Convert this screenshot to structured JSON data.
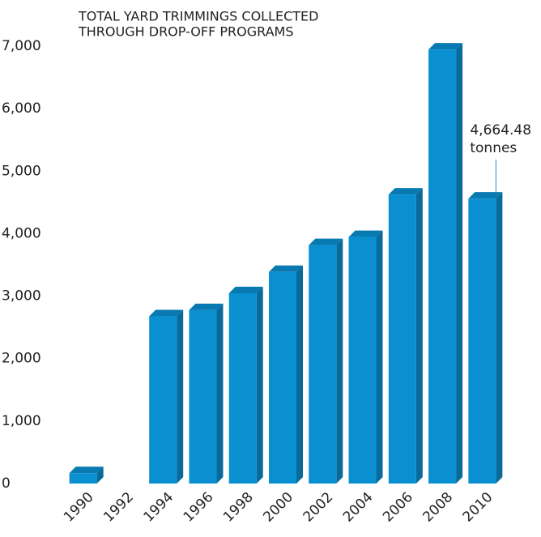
{
  "chart_data": {
    "type": "bar3d",
    "title": [
      "TOTAL YARD TRIMMINGS COLLECTED",
      "THROUGH DROP-OFF PROGRAMS"
    ],
    "categories": [
      "1990",
      "1992",
      "1994",
      "1996",
      "1998",
      "2000",
      "2002",
      "2004",
      "2006",
      "2008",
      "2010"
    ],
    "values": [
      270,
      null,
      2780,
      2880,
      3150,
      3490,
      3920,
      4050,
      4730,
      7050,
      4664.48
    ],
    "value_labels": [
      null,
      null,
      null,
      null,
      null,
      null,
      null,
      null,
      null,
      null,
      "4,664.48"
    ],
    "annotation": "tonnes",
    "color": "#0a8fd0",
    "ylim": [
      0,
      7000
    ],
    "yticks": [
      0,
      {
        "value": 1000,
        "label": "1,000"
      },
      {
        "value": 2000,
        "label": "2,000"
      },
      {
        "value": 3000,
        "label": "3,000"
      },
      {
        "value": 4000,
        "label": "4,000"
      },
      {
        "value": 5000,
        "label": "5,000"
      },
      {
        "value": 6000,
        "label": "6,000"
      },
      {
        "value": 7000,
        "label": "7,000"
      }
    ],
    "grid": false
  }
}
